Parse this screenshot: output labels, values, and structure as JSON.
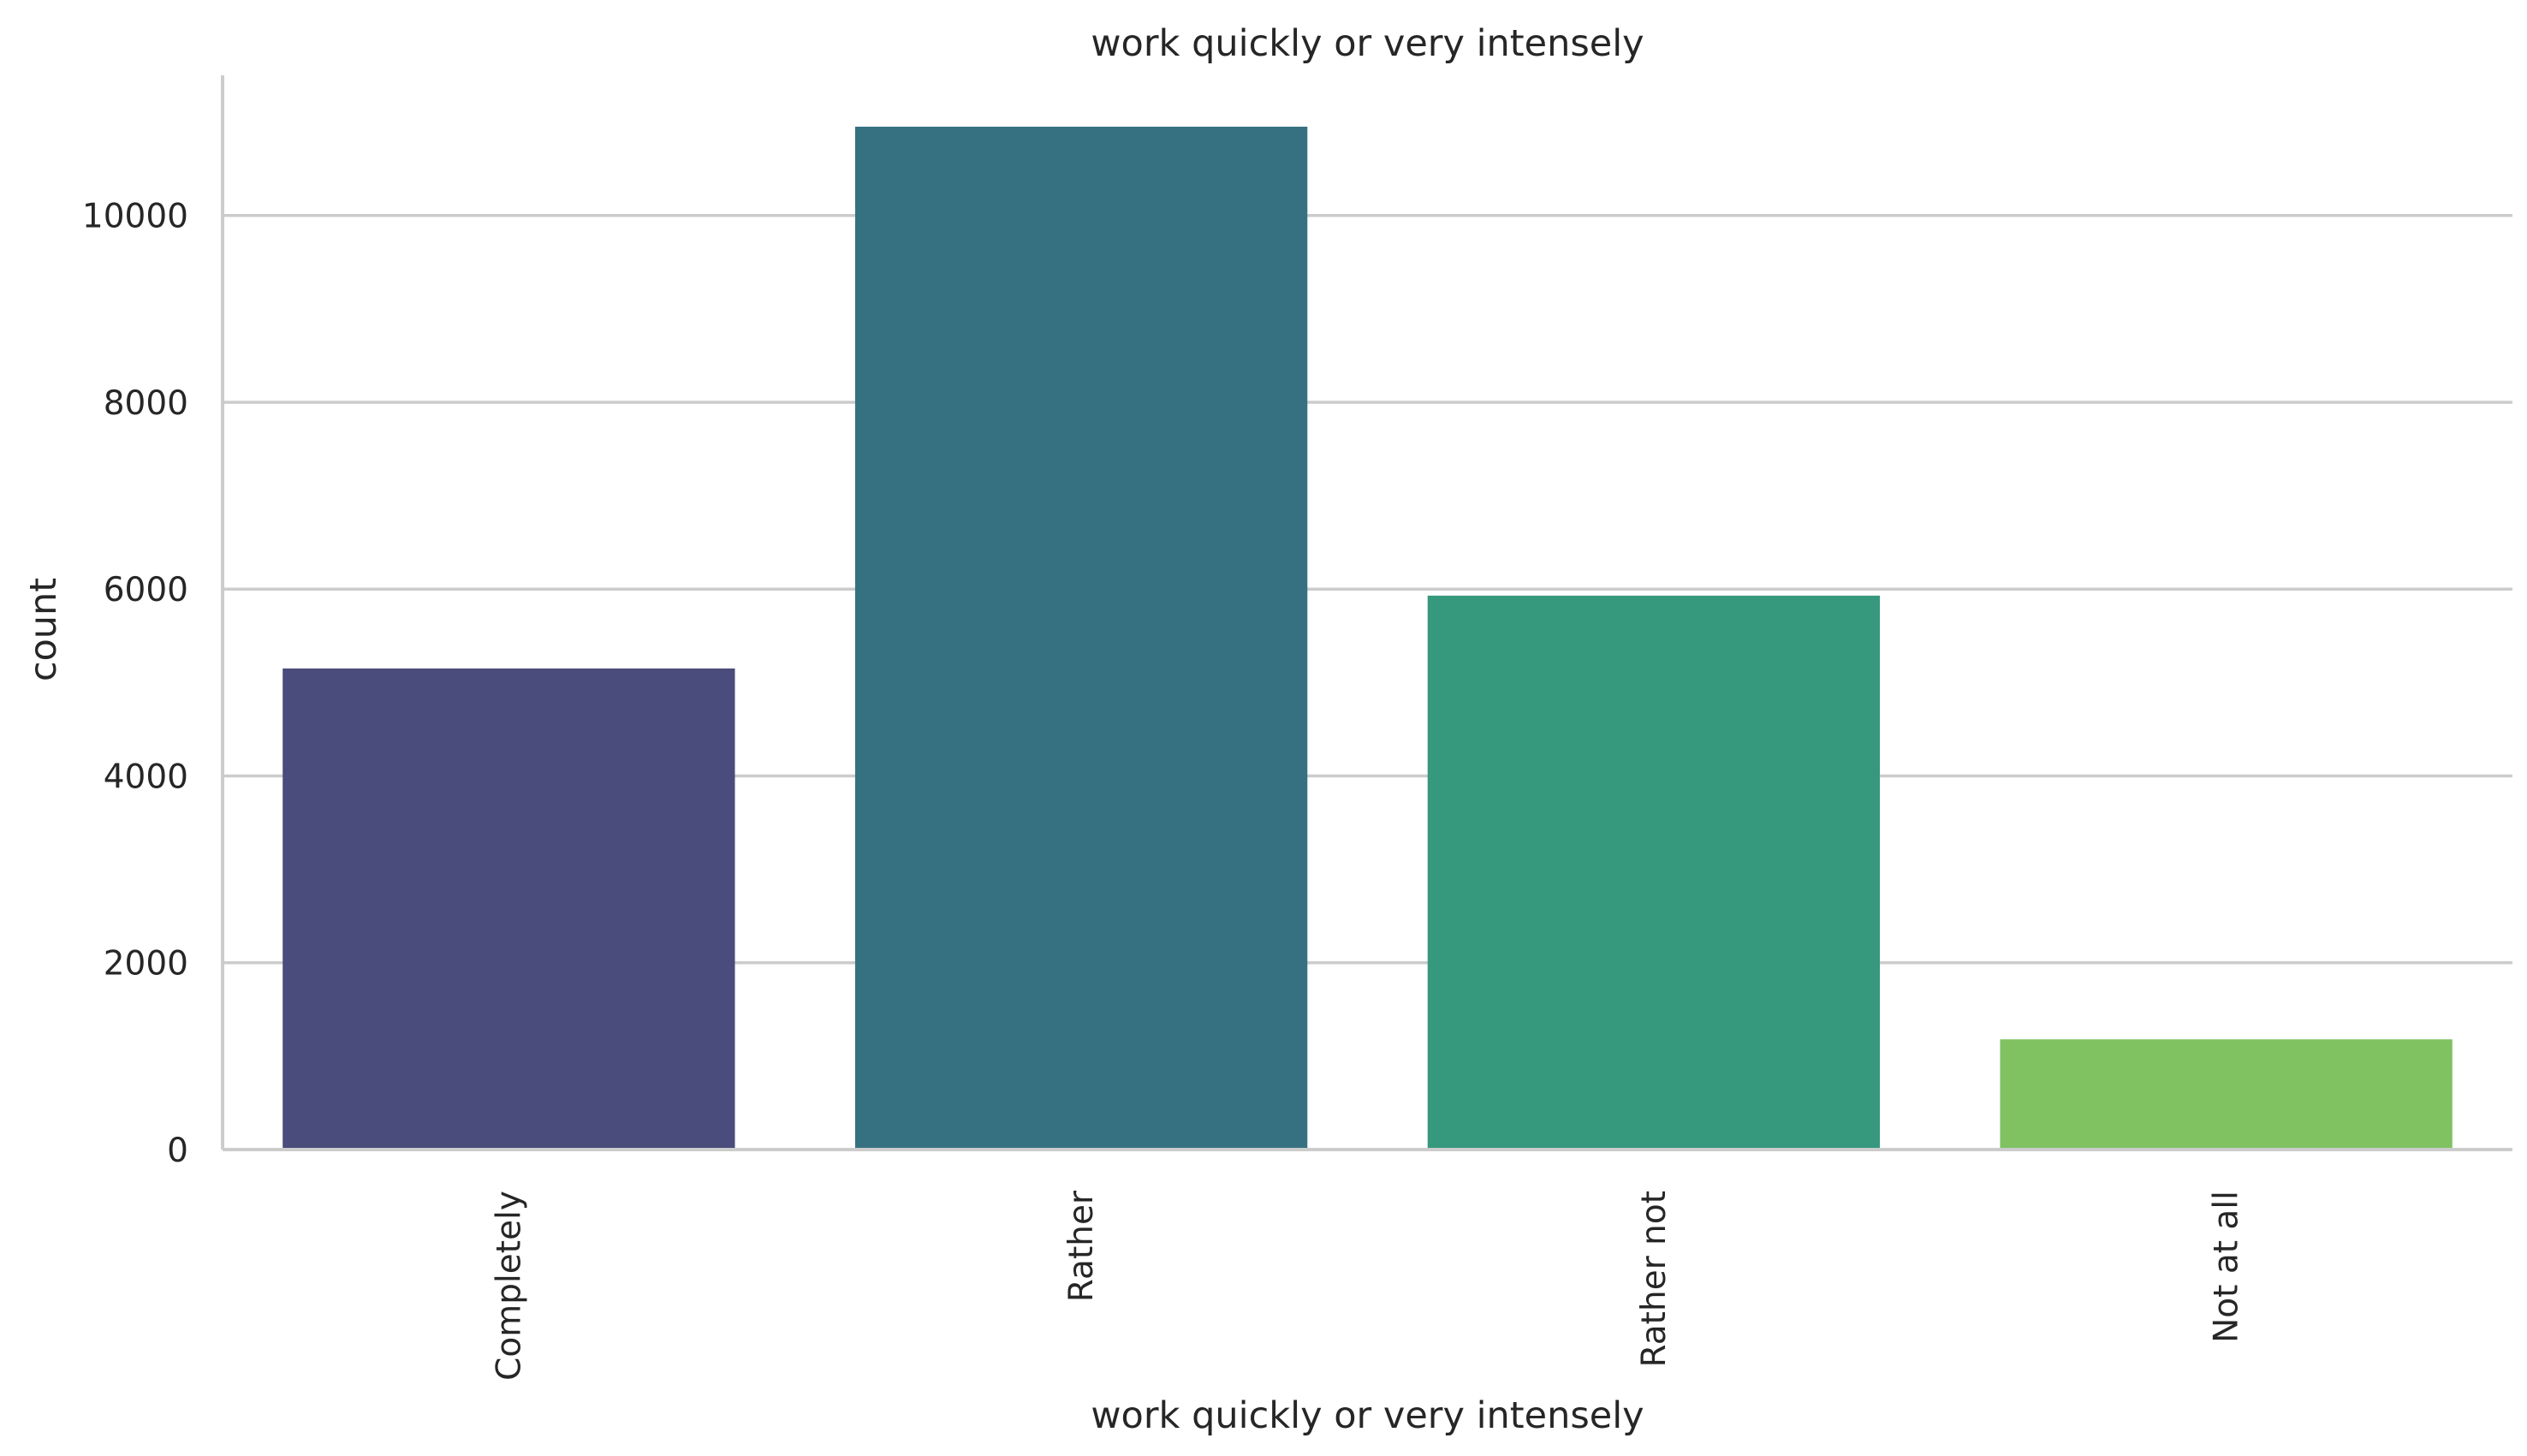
{
  "chart_data": {
    "type": "bar",
    "title": "work quickly or very intensely",
    "xlabel": "work quickly or very intensely",
    "ylabel": "count",
    "categories": [
      "Completely",
      "Rather",
      "Rather not",
      "Not at all"
    ],
    "values": [
      5150,
      10950,
      5930,
      1180
    ],
    "colors": [
      "#4a4c7c",
      "#367181",
      "#36987c",
      "#80c262"
    ],
    "ylim": [
      0,
      11500
    ],
    "yticks": [
      0,
      2000,
      4000,
      6000,
      8000,
      10000
    ],
    "grid": "horizontal",
    "x_tick_rotation": "vertical"
  }
}
